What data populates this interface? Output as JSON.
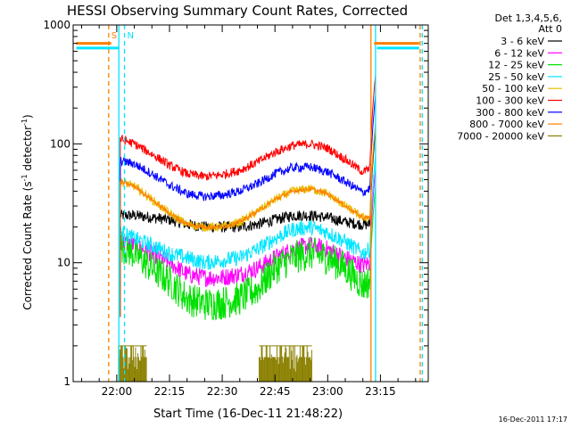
{
  "chart_data": {
    "type": "line",
    "title": "HESSI Observing Summary Count Rates, Corrected",
    "xlabel": "Start Time (16-Dec-11 21:48:22)",
    "ylabel_main": "Corrected Count Rate (s",
    "ylabel_sup1": "-1",
    "ylabel_mid": " detector",
    "ylabel_sup2": "-1",
    "ylabel_end": ")",
    "y_scale": "log",
    "ylim": [
      1,
      1000
    ],
    "xlim_minutes": [
      -12.4,
      88.6
    ],
    "x_tick_labels": [
      {
        "min": 0,
        "label": "22:00"
      },
      {
        "min": 15,
        "label": "22:15"
      },
      {
        "min": 30,
        "label": "22:30"
      },
      {
        "min": 45,
        "label": "22:45"
      },
      {
        "min": 60,
        "label": "23:00"
      },
      {
        "min": 75,
        "label": "23:15"
      }
    ],
    "y_tick_labels": [
      {
        "v": 1000,
        "label": "1000"
      },
      {
        "v": 100,
        "label": "100"
      },
      {
        "v": 10,
        "label": "10"
      },
      {
        "v": 1,
        "label": "1"
      }
    ],
    "legend_header": [
      "Det 1,3,4,5,6,",
      "Att 0"
    ],
    "footer_timestamp": "16-Dec-2011 17:17",
    "markers": [
      {
        "label": "S",
        "x_min": -2.3,
        "color": "#ff7f00"
      },
      {
        "label": "N",
        "x_min": 2.2,
        "color": "#00e5ff"
      }
    ],
    "marker_bars": [
      {
        "x0": -11.5,
        "x1": -1.6,
        "value": 700,
        "color": "#ff7f00"
      },
      {
        "x0": -11.5,
        "x1": 0.5,
        "value": 640,
        "color": "#00e5ff"
      },
      {
        "x0": 73.2,
        "x1": 86.0,
        "value": 700,
        "color": "#ff7f00"
      },
      {
        "x0": 74.0,
        "x1": 86.0,
        "value": 640,
        "color": "#00e5ff"
      }
    ],
    "vertical_lines": [
      {
        "x_min": -2.3,
        "color": "#ff7f00",
        "dash": true
      },
      {
        "x_min": 2.2,
        "color": "#00e5ff",
        "dash": true
      },
      {
        "x_min": 0.6,
        "color": "#00e5ff",
        "dash": false
      },
      {
        "x_min": 72.3,
        "color": "#ff7f00",
        "dash": false
      },
      {
        "x_min": 73.6,
        "color": "#00e5ff",
        "dash": false
      },
      {
        "x_min": 86.3,
        "color": "#ff7f00",
        "dash": true
      },
      {
        "x_min": 86.9,
        "color": "#00e5ff",
        "dash": true
      }
    ],
    "x_sample_minutes": [
      1,
      5,
      10,
      15,
      20,
      25,
      30,
      35,
      40,
      45,
      50,
      55,
      60,
      65,
      70,
      72
    ],
    "series": [
      {
        "name": "3 - 6 keV",
        "color": "#000000",
        "noise": 0.05,
        "values": [
          25,
          25,
          24,
          23,
          21,
          20,
          20,
          20,
          21,
          23,
          25,
          25,
          24,
          22,
          21,
          21
        ]
      },
      {
        "name": "6 - 12 keV",
        "color": "#ff00ff",
        "noise": 0.08,
        "values": [
          15,
          14,
          12,
          10,
          8,
          7.5,
          7.5,
          8,
          9,
          11,
          13,
          14,
          13,
          11,
          9.5,
          10
        ]
      },
      {
        "name": "12 - 25 keV",
        "color": "#00e000",
        "noise": 0.15,
        "values": [
          14,
          12,
          9,
          7,
          5,
          4.5,
          4.6,
          5,
          6,
          9,
          11,
          12,
          11,
          9,
          6.5,
          7
        ]
      },
      {
        "name": "25 - 50 keV",
        "color": "#00e5ff",
        "noise": 0.07,
        "values": [
          18,
          16,
          14,
          12,
          11,
          10,
          10.5,
          11,
          13,
          16,
          19,
          20,
          18,
          15,
          12,
          13
        ]
      },
      {
        "name": "50 - 100 keV",
        "color": "#e8c000",
        "noise": 0.04,
        "values": [
          48,
          44,
          34,
          26,
          21,
          20,
          20,
          22,
          27,
          34,
          40,
          42,
          38,
          30,
          24,
          24
        ]
      },
      {
        "name": "100 - 300 keV",
        "color": "#ff0000",
        "noise": 0.04,
        "values": [
          110,
          100,
          82,
          66,
          56,
          53,
          55,
          60,
          70,
          85,
          97,
          100,
          92,
          74,
          58,
          62
        ]
      },
      {
        "name": "300 - 800 keV",
        "color": "#0000ff",
        "noise": 0.04,
        "values": [
          72,
          68,
          56,
          45,
          38,
          36,
          37,
          40,
          46,
          56,
          63,
          64,
          58,
          48,
          39,
          42
        ]
      },
      {
        "name": "800 - 7000 keV",
        "color": "#ff8000",
        "noise": 0.02,
        "values": [
          48,
          44,
          34,
          26,
          21,
          20,
          20,
          22,
          27,
          34,
          40,
          42,
          38,
          30,
          24,
          24
        ]
      },
      {
        "name": "7000 - 20000 keV",
        "color": "#8b8000",
        "noise": 0,
        "values": []
      }
    ],
    "bursts": [
      {
        "series": "7000 - 20000 keV",
        "x0": 0.5,
        "x1": 8.5,
        "levels": [
          1,
          2
        ]
      },
      {
        "series": "7000 - 20000 keV",
        "x0": 40.5,
        "x1": 55.5,
        "levels": [
          1,
          2
        ]
      }
    ],
    "flare_end": {
      "x_min": 72,
      "x_max": 73.6
    }
  }
}
